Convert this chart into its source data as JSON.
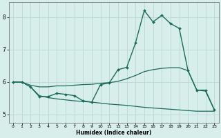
{
  "xlabel": "Humidex (Indice chaleur)",
  "background_color": "#d8eeeb",
  "grid_color": "#b8d8d4",
  "line_color": "#1a6b5a",
  "xlim": [
    -0.5,
    23.5
  ],
  "ylim": [
    4.75,
    8.45
  ],
  "yticks": [
    5,
    6,
    7,
    8
  ],
  "xticks": [
    0,
    1,
    2,
    3,
    4,
    5,
    6,
    7,
    8,
    9,
    10,
    11,
    12,
    13,
    14,
    15,
    16,
    17,
    18,
    19,
    20,
    21,
    22,
    23
  ],
  "series": [
    {
      "x": [
        0,
        1,
        2,
        3,
        4,
        5,
        6,
        7,
        8,
        9,
        10,
        11,
        12,
        13,
        14,
        15,
        16,
        17,
        18,
        19,
        20,
        21,
        22,
        23
      ],
      "y": [
        6.0,
        6.0,
        5.85,
        5.55,
        5.55,
        5.65,
        5.62,
        5.58,
        5.42,
        5.38,
        5.92,
        5.97,
        6.38,
        6.45,
        7.2,
        8.2,
        7.85,
        8.05,
        7.8,
        7.65,
        6.35,
        5.75,
        5.75,
        5.15
      ],
      "marker": "D",
      "marker_size": 2.0,
      "lw": 1.0,
      "has_marker": true
    },
    {
      "x": [
        0,
        1,
        2,
        3,
        4,
        5,
        6,
        7,
        8,
        9,
        10,
        11,
        12,
        13,
        14,
        15,
        16,
        17,
        18,
        19,
        20,
        21,
        22,
        23
      ],
      "y": [
        6.0,
        6.0,
        5.9,
        5.85,
        5.85,
        5.88,
        5.88,
        5.9,
        5.92,
        5.93,
        5.96,
        5.98,
        6.02,
        6.1,
        6.2,
        6.32,
        6.38,
        6.42,
        6.44,
        6.44,
        6.35,
        5.75,
        5.72,
        5.15
      ],
      "marker": null,
      "lw": 0.9,
      "has_marker": false
    },
    {
      "x": [
        0,
        1,
        2,
        3,
        4,
        5,
        6,
        7,
        8,
        9,
        10,
        11,
        12,
        13,
        14,
        15,
        16,
        17,
        18,
        19,
        20,
        21,
        22,
        23
      ],
      "y": [
        6.0,
        6.0,
        5.85,
        5.58,
        5.52,
        5.48,
        5.45,
        5.42,
        5.4,
        5.38,
        5.35,
        5.32,
        5.3,
        5.28,
        5.25,
        5.22,
        5.2,
        5.18,
        5.16,
        5.14,
        5.12,
        5.1,
        5.1,
        5.1
      ],
      "marker": null,
      "lw": 0.9,
      "has_marker": false
    }
  ]
}
